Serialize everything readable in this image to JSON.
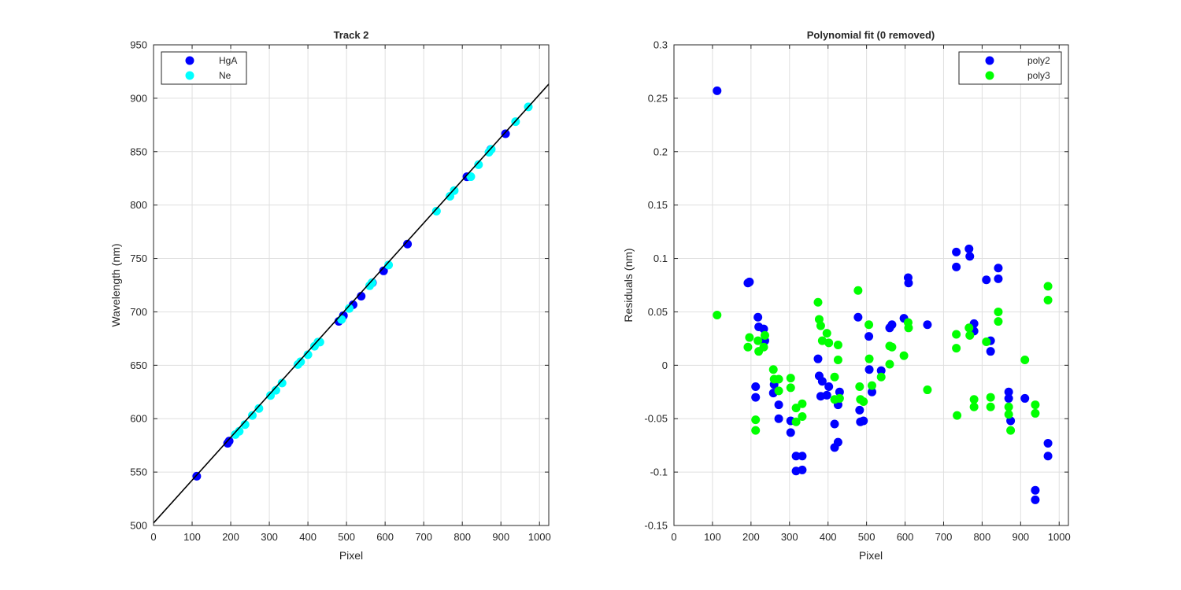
{
  "chart_data": [
    {
      "type": "scatter",
      "title": "Track 2",
      "xlabel": "Pixel",
      "ylabel": "Wavelength (nm)",
      "xlim": [
        0,
        1024
      ],
      "ylim": [
        500,
        950
      ],
      "xticks": [
        0,
        100,
        200,
        300,
        400,
        500,
        600,
        700,
        800,
        900,
        1000
      ],
      "yticks": [
        500,
        550,
        600,
        650,
        700,
        750,
        800,
        850,
        900,
        950
      ],
      "grid": true,
      "legend_position": "top-left",
      "series": [
        {
          "name": "HgA",
          "color": "#0000ff",
          "points": [
            [
              112,
              546.1
            ],
            [
              192,
              577.0
            ],
            [
              196,
              579.1
            ],
            [
              480,
              691.1
            ],
            [
              492,
              696.5
            ],
            [
              517,
              706.7
            ],
            [
              538,
              714.7
            ],
            [
              567,
              727.3
            ],
            [
              596,
              738.4
            ],
            [
              658,
              763.5
            ],
            [
              812,
              826.5
            ],
            [
              874,
              852.1
            ],
            [
              912,
              866.8
            ]
          ]
        },
        {
          "name": "Ne",
          "color": "#00ffff",
          "points": [
            [
              212,
              585.2
            ],
            [
              222,
              588.2
            ],
            [
              237,
              594.5
            ],
            [
              256,
              603.0
            ],
            [
              273,
              609.6
            ],
            [
              303,
              621.7
            ],
            [
              317,
              626.6
            ],
            [
              333,
              633.4
            ],
            [
              374,
              650.7
            ],
            [
              381,
              653.3
            ],
            [
              400,
              659.9
            ],
            [
              417,
              667.8
            ],
            [
              426,
              671.7
            ],
            [
              431,
              671.7
            ],
            [
              487,
              692.9
            ],
            [
              507,
              703.2
            ],
            [
              560,
              724.5
            ],
            [
              566,
              727.3
            ],
            [
              609,
              743.9
            ],
            [
              733,
              794.3
            ],
            [
              768,
              808.2
            ],
            [
              779,
              813.6
            ],
            [
              822,
              826.6
            ],
            [
              842,
              837.8
            ],
            [
              869,
              849.5
            ],
            [
              875,
              852.2
            ],
            [
              938,
              878.1
            ],
            [
              971,
              891.9
            ]
          ]
        },
        {
          "name": "fit",
          "type": "line",
          "color": "#000000",
          "line": [
            [
              0,
              502.3
            ],
            [
              1024,
              913.2
            ]
          ]
        }
      ]
    },
    {
      "type": "scatter",
      "title": "Polynomial fit  (0 removed)",
      "xlabel": "Pixel",
      "ylabel": "Residuals (nm)",
      "xlim": [
        0,
        1024
      ],
      "ylim": [
        -0.15,
        0.3
      ],
      "xticks": [
        0,
        100,
        200,
        300,
        400,
        500,
        600,
        700,
        800,
        900,
        1000
      ],
      "yticks": [
        -0.15,
        -0.1,
        -0.05,
        0,
        0.05,
        0.1,
        0.15,
        0.2,
        0.25,
        0.3
      ],
      "ytick_labels": [
        "-0.15",
        "-0.1",
        "-0.05",
        "0",
        "0.05",
        "0.1",
        "0.15",
        "0.2",
        "0.25",
        "0.3"
      ],
      "grid": true,
      "legend_position": "top-right",
      "series": [
        {
          "name": "poly2",
          "color": "#0000ff",
          "points": [
            [
              112,
              0.257
            ],
            [
              192,
              0.077
            ],
            [
              196,
              0.078
            ],
            [
              212,
              -0.02
            ],
            [
              212,
              -0.03
            ],
            [
              218,
              0.045
            ],
            [
              220,
              0.036
            ],
            [
              233,
              0.034
            ],
            [
              236,
              0.023
            ],
            [
              258,
              -0.026
            ],
            [
              260,
              -0.018
            ],
            [
              272,
              -0.037
            ],
            [
              272,
              -0.05
            ],
            [
              303,
              -0.052
            ],
            [
              303,
              -0.063
            ],
            [
              317,
              -0.085
            ],
            [
              317,
              -0.099
            ],
            [
              333,
              -0.085
            ],
            [
              333,
              -0.098
            ],
            [
              374,
              0.006
            ],
            [
              377,
              -0.01
            ],
            [
              381,
              -0.029
            ],
            [
              385,
              -0.015
            ],
            [
              397,
              -0.028
            ],
            [
              402,
              -0.02
            ],
            [
              417,
              -0.055
            ],
            [
              417,
              -0.077
            ],
            [
              426,
              -0.037
            ],
            [
              426,
              -0.072
            ],
            [
              430,
              -0.025
            ],
            [
              478,
              0.045
            ],
            [
              482,
              -0.042
            ],
            [
              484,
              -0.053
            ],
            [
              492,
              -0.052
            ],
            [
              506,
              0.027
            ],
            [
              507,
              -0.004
            ],
            [
              514,
              -0.025
            ],
            [
              538,
              -0.005
            ],
            [
              560,
              0.035
            ],
            [
              566,
              0.038
            ],
            [
              597,
              0.044
            ],
            [
              608,
              0.082
            ],
            [
              609,
              0.077
            ],
            [
              658,
              0.038
            ],
            [
              733,
              0.092
            ],
            [
              733,
              0.106
            ],
            [
              766,
              0.109
            ],
            [
              768,
              0.102
            ],
            [
              779,
              0.039
            ],
            [
              779,
              0.032
            ],
            [
              811,
              0.08
            ],
            [
              822,
              0.023
            ],
            [
              822,
              0.013
            ],
            [
              842,
              0.091
            ],
            [
              842,
              0.081
            ],
            [
              869,
              -0.025
            ],
            [
              869,
              -0.031
            ],
            [
              874,
              -0.052
            ],
            [
              911,
              -0.031
            ],
            [
              938,
              -0.117
            ],
            [
              938,
              -0.126
            ],
            [
              971,
              -0.073
            ],
            [
              971,
              -0.085
            ]
          ]
        },
        {
          "name": "poly3",
          "color": "#00ff00",
          "points": [
            [
              112,
              0.047
            ],
            [
              192,
              0.017
            ],
            [
              196,
              0.026
            ],
            [
              212,
              -0.051
            ],
            [
              212,
              -0.061
            ],
            [
              218,
              0.023
            ],
            [
              220,
              0.013
            ],
            [
              233,
              0.017
            ],
            [
              236,
              0.028
            ],
            [
              258,
              -0.004
            ],
            [
              260,
              -0.013
            ],
            [
              272,
              -0.024
            ],
            [
              272,
              -0.013
            ],
            [
              303,
              -0.012
            ],
            [
              303,
              -0.021
            ],
            [
              317,
              -0.04
            ],
            [
              317,
              -0.053
            ],
            [
              333,
              -0.036
            ],
            [
              333,
              -0.048
            ],
            [
              374,
              0.059
            ],
            [
              377,
              0.043
            ],
            [
              381,
              0.037
            ],
            [
              385,
              0.023
            ],
            [
              397,
              0.03
            ],
            [
              402,
              0.021
            ],
            [
              417,
              -0.011
            ],
            [
              417,
              -0.032
            ],
            [
              426,
              0.019
            ],
            [
              426,
              0.005
            ],
            [
              430,
              -0.031
            ],
            [
              478,
              0.07
            ],
            [
              482,
              -0.02
            ],
            [
              484,
              -0.032
            ],
            [
              492,
              -0.034
            ],
            [
              506,
              0.038
            ],
            [
              507,
              0.006
            ],
            [
              514,
              -0.019
            ],
            [
              538,
              -0.011
            ],
            [
              560,
              0.018
            ],
            [
              560,
              0.001
            ],
            [
              566,
              0.017
            ],
            [
              597,
              0.009
            ],
            [
              608,
              0.04
            ],
            [
              609,
              0.035
            ],
            [
              658,
              -0.023
            ],
            [
              733,
              0.029
            ],
            [
              733,
              0.016
            ],
            [
              735,
              -0.047
            ],
            [
              766,
              0.035
            ],
            [
              768,
              0.028
            ],
            [
              779,
              -0.032
            ],
            [
              779,
              -0.039
            ],
            [
              811,
              0.022
            ],
            [
              822,
              -0.03
            ],
            [
              822,
              -0.039
            ],
            [
              842,
              0.05
            ],
            [
              842,
              0.041
            ],
            [
              869,
              -0.039
            ],
            [
              869,
              -0.046
            ],
            [
              874,
              -0.061
            ],
            [
              911,
              0.005
            ],
            [
              938,
              -0.037
            ],
            [
              938,
              -0.045
            ],
            [
              971,
              0.074
            ],
            [
              971,
              0.061
            ]
          ]
        }
      ]
    }
  ]
}
